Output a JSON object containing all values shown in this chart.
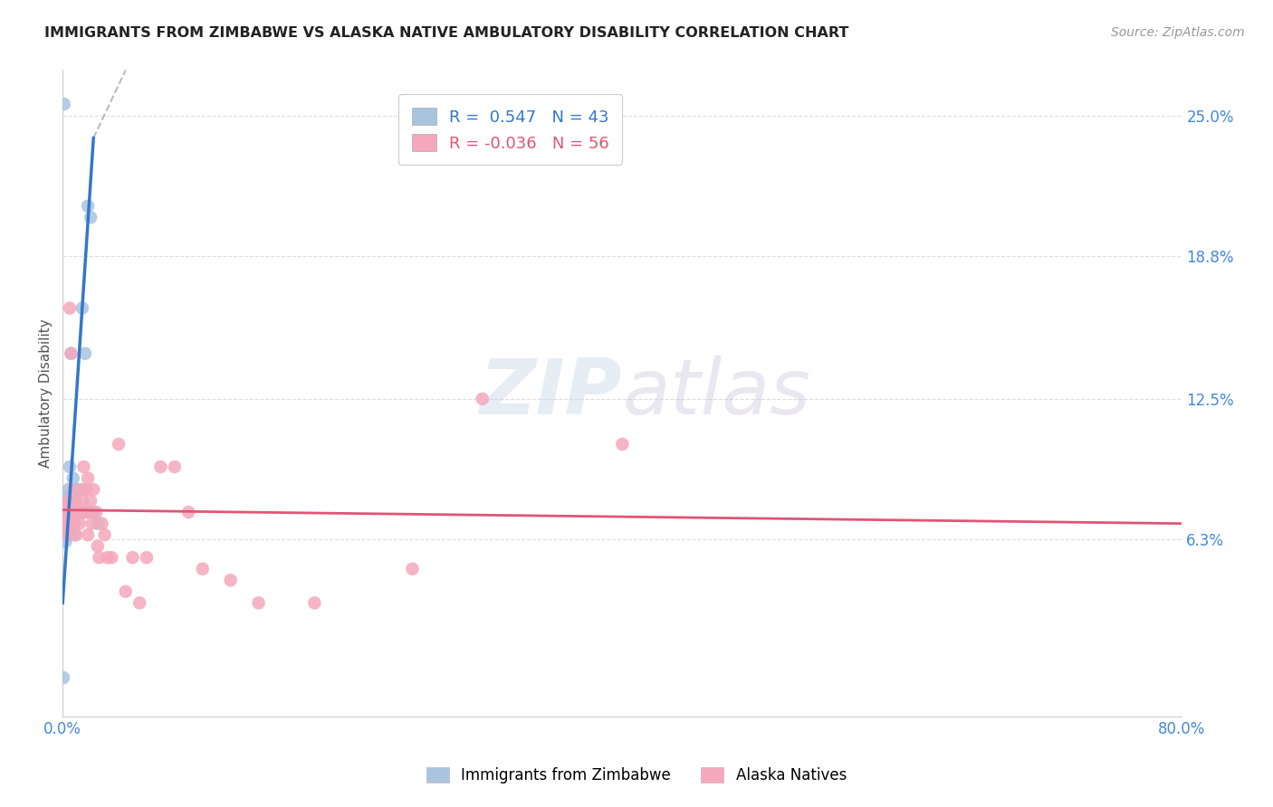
{
  "title": "IMMIGRANTS FROM ZIMBABWE VS ALASKA NATIVE AMBULATORY DISABILITY CORRELATION CHART",
  "source": "Source: ZipAtlas.com",
  "ylabel": "Ambulatory Disability",
  "right_yticks": [
    6.3,
    12.5,
    18.8,
    25.0
  ],
  "right_ytick_labels": [
    "6.3%",
    "12.5%",
    "18.8%",
    "25.0%"
  ],
  "legend_blue_r": "0.547",
  "legend_blue_n": "43",
  "legend_pink_r": "-0.036",
  "legend_pink_n": "56",
  "legend_blue_label": "Immigrants from Zimbabwe",
  "legend_pink_label": "Alaska Natives",
  "blue_color": "#aac4e0",
  "pink_color": "#f5a8bc",
  "blue_line_color": "#3377cc",
  "pink_line_color": "#e05575",
  "title_color": "#222222",
  "axis_label_color": "#4488dd",
  "xlim": [
    0,
    80
  ],
  "ylim": [
    -1.5,
    27
  ],
  "figsize": [
    14.06,
    8.92
  ],
  "dpi": 100,
  "blue_dots_x": [
    0.05,
    0.08,
    0.1,
    0.12,
    0.15,
    0.18,
    0.2,
    0.22,
    0.25,
    0.28,
    0.3,
    0.32,
    0.35,
    0.38,
    0.4,
    0.42,
    0.45,
    0.48,
    0.5,
    0.52,
    0.55,
    0.58,
    0.6,
    0.65,
    0.7,
    0.75,
    0.8,
    0.85,
    0.9,
    1.0,
    1.1,
    1.2,
    1.3,
    1.4,
    1.5,
    1.6,
    1.8,
    2.0,
    2.2,
    2.5,
    0.1,
    0.2,
    0.3
  ],
  "blue_dots_y": [
    0.2,
    6.5,
    6.8,
    7.0,
    7.2,
    7.5,
    6.2,
    6.8,
    7.0,
    7.8,
    8.2,
    7.5,
    7.0,
    6.5,
    8.5,
    7.0,
    6.8,
    7.2,
    9.5,
    7.5,
    6.5,
    7.8,
    14.5,
    7.5,
    8.0,
    9.0,
    7.5,
    6.5,
    8.0,
    8.5,
    7.5,
    8.5,
    7.5,
    16.5,
    7.5,
    14.5,
    21.0,
    20.5,
    7.5,
    7.0,
    25.5,
    7.5,
    7.0
  ],
  "pink_dots_x": [
    0.1,
    0.15,
    0.2,
    0.25,
    0.3,
    0.35,
    0.4,
    0.45,
    0.5,
    0.55,
    0.6,
    0.65,
    0.7,
    0.75,
    0.8,
    0.85,
    0.9,
    0.95,
    1.0,
    1.1,
    1.2,
    1.3,
    1.4,
    1.5,
    1.6,
    1.7,
    1.8,
    1.9,
    2.0,
    2.2,
    2.4,
    2.6,
    2.8,
    3.0,
    3.5,
    4.0,
    4.5,
    5.0,
    5.5,
    6.0,
    7.0,
    8.0,
    9.0,
    10.0,
    12.0,
    14.0,
    18.0,
    25.0,
    30.0,
    1.2,
    1.5,
    1.8,
    2.1,
    2.5,
    3.2,
    40.0
  ],
  "pink_dots_y": [
    7.5,
    7.0,
    7.8,
    6.5,
    7.2,
    8.0,
    7.5,
    6.8,
    16.5,
    7.0,
    14.5,
    7.5,
    7.0,
    8.5,
    7.0,
    8.0,
    7.5,
    6.5,
    7.8,
    7.5,
    7.0,
    7.5,
    8.0,
    9.5,
    7.5,
    8.5,
    9.0,
    7.5,
    8.0,
    8.5,
    7.5,
    5.5,
    7.0,
    6.5,
    5.5,
    10.5,
    4.0,
    5.5,
    3.5,
    5.5,
    9.5,
    9.5,
    7.5,
    5.0,
    4.5,
    3.5,
    3.5,
    5.0,
    12.5,
    7.5,
    8.5,
    6.5,
    7.0,
    6.0,
    5.5,
    10.5
  ],
  "blue_trend_x0": 0.0,
  "blue_trend_y0": 3.5,
  "blue_trend_x1": 2.2,
  "blue_trend_y1": 24.0,
  "blue_dash_x0": 2.2,
  "blue_dash_y0": 24.0,
  "blue_dash_x1": 4.5,
  "blue_dash_y1": 27.0,
  "pink_trend_x0": 0.0,
  "pink_trend_y0": 7.6,
  "pink_trend_x1": 80.0,
  "pink_trend_y1": 7.0
}
